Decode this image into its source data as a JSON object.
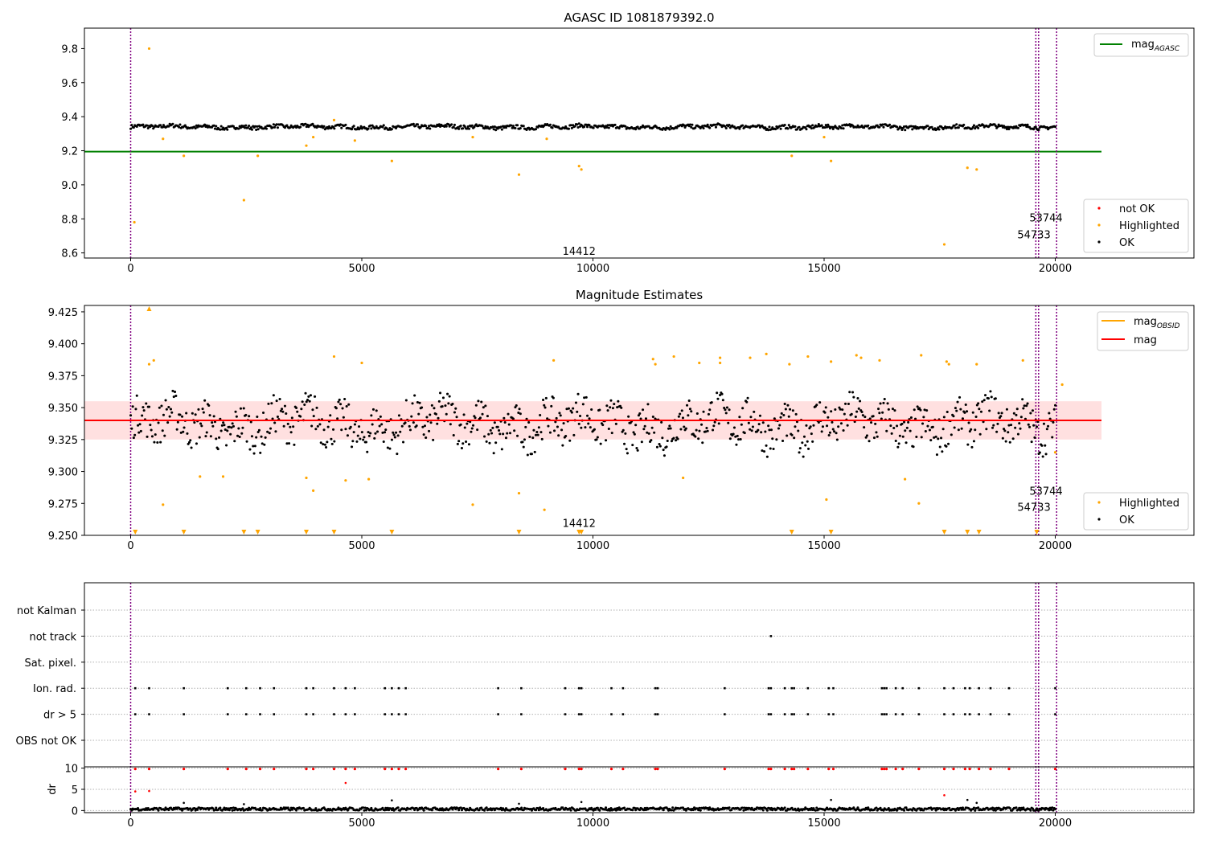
{
  "chart_data": [
    {
      "type": "scatter",
      "title": "AGASC ID 1081879392.0",
      "xlim": [
        -1000,
        23000
      ],
      "ylim": [
        8.57,
        9.92
      ],
      "x_ticks": [
        0,
        5000,
        10000,
        15000,
        20000
      ],
      "y_ticks": [
        8.6,
        8.8,
        9.0,
        9.2,
        9.4,
        9.6,
        9.8
      ],
      "x_tick_labels": [
        "0",
        "5000",
        "10000",
        "15000",
        "20000"
      ],
      "y_tick_labels": [
        "8.6",
        "8.8",
        "9.0",
        "9.2",
        "9.4",
        "9.6",
        "9.8"
      ],
      "reference_line": {
        "name": "mag",
        "subscript": "AGASC",
        "y": 9.195,
        "color": "#008000",
        "x_range": [
          -1000,
          21000
        ]
      },
      "ok_band": {
        "x_range": [
          0,
          20000
        ],
        "center": 9.34,
        "amplitude": 0.016,
        "color": "#000000"
      },
      "highlighted": {
        "color": "#ffa500",
        "x": [
          80,
          400,
          700,
          1150,
          2450,
          2750,
          3800,
          3950,
          4400,
          4850,
          5650,
          7400,
          8400,
          9000,
          9700,
          9750,
          14300,
          15000,
          15150,
          17600,
          18100,
          18300
        ],
        "y": [
          8.78,
          9.8,
          9.27,
          9.17,
          8.91,
          9.17,
          9.23,
          9.28,
          9.38,
          9.26,
          9.14,
          9.28,
          9.06,
          9.27,
          9.11,
          9.09,
          9.17,
          9.28,
          9.14,
          8.65,
          9.1,
          9.09
        ]
      },
      "obs_lines": [
        0,
        19580,
        19640,
        20030
      ],
      "annotations": [
        {
          "text": "14412",
          "x": 9700,
          "y": 8.59
        },
        {
          "text": "53744",
          "x": 19800,
          "y": 8.785
        },
        {
          "text": "54733",
          "x": 19540,
          "y": 8.685
        }
      ],
      "legend_lines": [
        {
          "label": "mag",
          "subscript": "AGASC",
          "color": "#008000"
        }
      ],
      "legend_points": [
        {
          "label": "not OK",
          "color": "#ff0000"
        },
        {
          "label": "Highlighted",
          "color": "#ffa500"
        },
        {
          "label": "OK",
          "color": "#000000"
        }
      ]
    },
    {
      "type": "scatter",
      "title": "Magnitude Estimates",
      "xlim": [
        -1000,
        23000
      ],
      "ylim": [
        9.25,
        9.43
      ],
      "x_ticks": [
        0,
        5000,
        10000,
        15000,
        20000
      ],
      "y_ticks": [
        9.25,
        9.275,
        9.3,
        9.325,
        9.35,
        9.375,
        9.4,
        9.425
      ],
      "x_tick_labels": [
        "0",
        "5000",
        "10000",
        "15000",
        "20000"
      ],
      "y_tick_labels": [
        "9.250",
        "9.275",
        "9.300",
        "9.325",
        "9.350",
        "9.375",
        "9.400",
        "9.425"
      ],
      "mag_line": {
        "name": "mag",
        "y": 9.34,
        "color": "#ff0000",
        "x_range": [
          -1000,
          21000
        ],
        "band": [
          9.325,
          9.355
        ]
      },
      "ok_band": {
        "x_range": [
          0,
          20000
        ],
        "center": 9.337,
        "amplitude": 0.022,
        "color": "#000000"
      },
      "highlighted": {
        "color": "#ffa500",
        "x": [
          400,
          500,
          700,
          1500,
          2000,
          3800,
          3950,
          4400,
          4650,
          5000,
          5150,
          7400,
          8400,
          8950,
          9150,
          11300,
          11350,
          11750,
          11950,
          12300,
          12750,
          12750,
          13400,
          13750,
          14250,
          14650,
          15050,
          15150,
          15700,
          15800,
          16200,
          16750,
          17050,
          17100,
          17650,
          17700,
          18300,
          19300,
          20150,
          20000
        ],
        "y": [
          9.384,
          9.387,
          9.274,
          9.296,
          9.296,
          9.295,
          9.285,
          9.39,
          9.293,
          9.385,
          9.294,
          9.274,
          9.283,
          9.27,
          9.387,
          9.388,
          9.384,
          9.39,
          9.295,
          9.385,
          9.385,
          9.389,
          9.389,
          9.392,
          9.384,
          9.39,
          9.278,
          9.386,
          9.391,
          9.389,
          9.387,
          9.294,
          9.275,
          9.391,
          9.386,
          9.384,
          9.384,
          9.387,
          9.368,
          9.315
        ]
      },
      "low_markers": {
        "color": "#ffa500",
        "x": [
          100,
          1150,
          2450,
          2750,
          3800,
          4400,
          5650,
          8400,
          9700,
          9750,
          14300,
          15150,
          17600,
          18100,
          18350,
          19600
        ]
      },
      "high_markers": {
        "color": "#ffa500",
        "x": [
          400
        ]
      },
      "obs_lines": [
        0,
        19580,
        19640,
        20030
      ],
      "annotations": [
        {
          "text": "14412",
          "x": 9700,
          "y": 9.2567
        },
        {
          "text": "53744",
          "x": 19800,
          "y": 9.2817
        },
        {
          "text": "54733",
          "x": 19540,
          "y": 9.2692
        }
      ],
      "legend_lines": [
        {
          "label": "mag",
          "subscript": "OBSID",
          "color": "#ffa500"
        },
        {
          "label": "mag",
          "subscript": "",
          "color": "#ff0000"
        }
      ],
      "legend_points": [
        {
          "label": "Highlighted",
          "color": "#ffa500"
        },
        {
          "label": "OK",
          "color": "#000000"
        }
      ]
    },
    {
      "type": "scatter",
      "title": "",
      "xlim": [
        -1000,
        23000
      ],
      "categories": [
        "not Kalman",
        "not track",
        "Sat. pixel.",
        "Ion. rad.",
        "dr > 5",
        "OBS not OK"
      ],
      "flags": {
        "not track": [
          13850
        ],
        "Ion. rad.": [
          100,
          400,
          1150,
          2100,
          2500,
          2800,
          3100,
          3800,
          3950,
          4400,
          4650,
          4850,
          5500,
          5650,
          5800,
          5950,
          7950,
          8450,
          9400,
          9700,
          9750,
          10400,
          10650,
          11350,
          11400,
          12850,
          13800,
          13850,
          14150,
          14300,
          14350,
          14650,
          15100,
          15200,
          16250,
          16300,
          16350,
          16550,
          16700,
          17050,
          17600,
          17800,
          18050,
          18150,
          18350,
          18600,
          19000,
          20000
        ],
        "dr > 5": [
          100,
          400,
          1150,
          2100,
          2500,
          2800,
          3100,
          3800,
          3950,
          4400,
          4650,
          4850,
          5500,
          5650,
          5800,
          5950,
          7950,
          8450,
          9400,
          9700,
          9750,
          10400,
          10650,
          11350,
          11400,
          12850,
          13800,
          13850,
          14150,
          14300,
          14350,
          14650,
          15100,
          15200,
          16250,
          16300,
          16350,
          16550,
          16700,
          17050,
          17600,
          17800,
          18050,
          18150,
          18350,
          18600,
          19000,
          20000
        ]
      },
      "dr": {
        "ylabel": "dr",
        "ylim": [
          -0.5,
          10.3
        ],
        "y_ticks": [
          0,
          5,
          10
        ],
        "y_tick_labels": [
          "0",
          "5",
          "10"
        ],
        "x_ticks": [
          0,
          5000,
          10000,
          15000,
          20000
        ],
        "x_tick_labels": [
          "0",
          "5000",
          "10000",
          "15000",
          "20000"
        ],
        "red_points": {
          "color": "#ff0000",
          "x": [
            100,
            400,
            1150,
            2100,
            2500,
            2800,
            3100,
            3800,
            3950,
            4400,
            4650,
            4850,
            5500,
            5650,
            5800,
            5950,
            7950,
            8450,
            9400,
            9700,
            9750,
            10400,
            10650,
            11350,
            11400,
            12850,
            13800,
            13850,
            14150,
            14300,
            14350,
            14650,
            15100,
            15200,
            16250,
            16300,
            16350,
            16550,
            16700,
            17050,
            17600,
            17800,
            18050,
            18150,
            18350,
            18600,
            19000,
            20000
          ],
          "y": 9.8
        },
        "red_extra": {
          "x": [
            100,
            400,
            4650,
            17600
          ],
          "y": [
            4.5,
            4.6,
            6.5,
            3.6
          ]
        },
        "black_extra": {
          "x": [
            1150,
            2450,
            5650,
            8400,
            9750,
            15150,
            18100,
            18300
          ],
          "y": [
            1.8,
            1.5,
            2.4,
            1.6,
            2.0,
            2.5,
            2.5,
            1.8
          ]
        },
        "ok_band": {
          "x_range": [
            0,
            20000
          ],
          "center": 0.35,
          "amplitude": 0.35
        }
      },
      "obs_lines": [
        0,
        19580,
        19640,
        20030
      ]
    }
  ]
}
